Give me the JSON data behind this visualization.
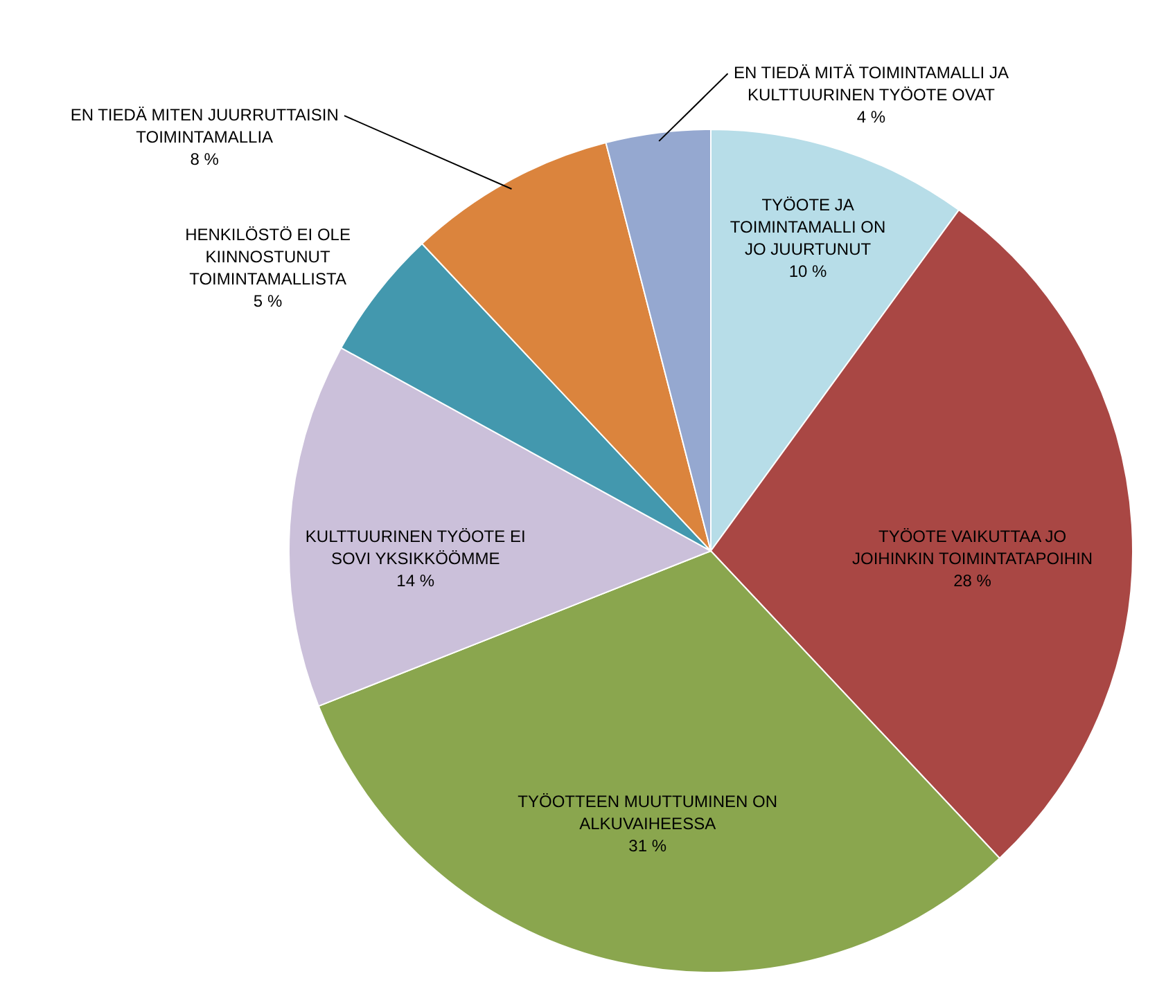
{
  "chart_data": {
    "type": "pie",
    "categories": [
      "TYÖOTE JA TOIMINTAMALLI ON JO JUURTUNUT",
      "TYÖOTE VAIKUTTAA JO JOIHINKIN TOIMINTATAPOIHIN",
      "TYÖOTTEEN MUUTTUMINEN ON ALKUVAIHEESSA",
      "KULTTUURINEN TYÖOTE EI SOVI YKSIKKÖÖMME",
      "HENKILÖSTÖ EI OLE KIINNOSTUNUT TOIMINTAMALLISTA",
      "EN TIEDÄ MITEN JUURRUTTAISIN TOIMINTAMALLIA",
      "EN TIEDÄ MITÄ TOIMINTAMALLI JA KULTTUURINEN TYÖOTE OVAT"
    ],
    "values": [
      10,
      28,
      31,
      14,
      5,
      8,
      4
    ],
    "colors": [
      "#b7dde8",
      "#a94744",
      "#8aa64e",
      "#cbc0da",
      "#4398ae",
      "#db843d",
      "#95a8d0"
    ],
    "value_labels": [
      "10 %",
      "28 %",
      "31 %",
      "14 %",
      "5 %",
      "8 %",
      "4 %"
    ]
  }
}
